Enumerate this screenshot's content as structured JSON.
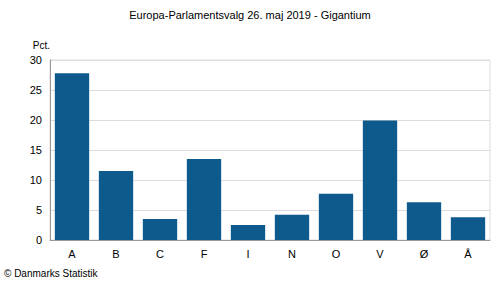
{
  "chart_data": {
    "type": "bar",
    "title": "Europa-Parlamentsvalg 26. maj 2019 - Gigantium",
    "ylabel": "Pct.",
    "categories": [
      "A",
      "B",
      "C",
      "F",
      "I",
      "N",
      "O",
      "V",
      "Ø",
      "Å"
    ],
    "values": [
      27.8,
      11.5,
      3.5,
      13.5,
      2.5,
      4.2,
      7.7,
      19.9,
      6.3,
      3.8
    ],
    "color": "#0f5a8c",
    "ylim": [
      0,
      30
    ],
    "yticks": [
      0,
      5,
      10,
      15,
      20,
      25,
      30
    ],
    "grid": true,
    "annotations": [
      "© Danmarks Statistik"
    ]
  }
}
